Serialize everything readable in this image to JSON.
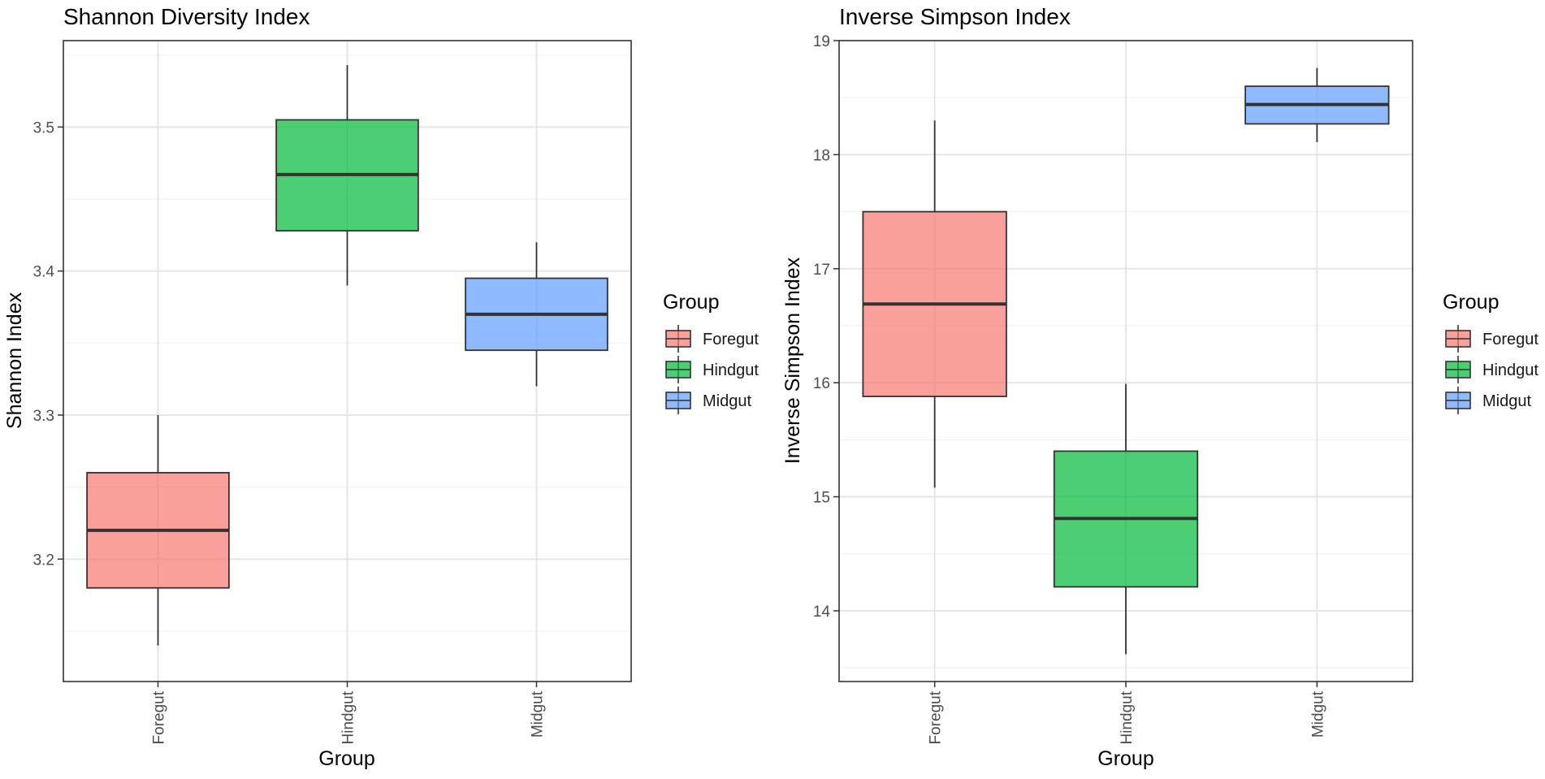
{
  "chart_data": [
    {
      "type": "box",
      "title": "Shannon Diversity Index",
      "xlabel": "Group",
      "ylabel": "Shannon Index",
      "ylim": [
        3.115,
        3.56
      ],
      "yticks": [
        3.2,
        3.3,
        3.4,
        3.5
      ],
      "yticks_minor": [
        3.15,
        3.25,
        3.35,
        3.45,
        3.55
      ],
      "grid": true,
      "categories": [
        "Foregut",
        "Hindgut",
        "Midgut"
      ],
      "boxes": [
        {
          "group": "Foregut",
          "min": 3.14,
          "q1": 3.18,
          "median": 3.22,
          "q3": 3.26,
          "max": 3.3,
          "color": "#F8766D"
        },
        {
          "group": "Hindgut",
          "min": 3.39,
          "q1": 3.428,
          "median": 3.467,
          "q3": 3.505,
          "max": 3.543,
          "color": "#00BA38"
        },
        {
          "group": "Midgut",
          "min": 3.32,
          "q1": 3.345,
          "median": 3.37,
          "q3": 3.395,
          "max": 3.42,
          "color": "#619CFF"
        }
      ],
      "legend": {
        "title": "Group",
        "entries": [
          "Foregut",
          "Hindgut",
          "Midgut"
        ],
        "position": "right"
      }
    },
    {
      "type": "box",
      "title": "Inverse Simpson Index",
      "xlabel": "Group",
      "ylabel": "Inverse Simpson Index",
      "ylim": [
        13.38,
        19.0
      ],
      "yticks": [
        14,
        15,
        16,
        17,
        18,
        19
      ],
      "yticks_minor": [
        13.5,
        14.5,
        15.5,
        16.5,
        17.5,
        18.5
      ],
      "grid": true,
      "categories": [
        "Foregut",
        "Hindgut",
        "Midgut"
      ],
      "boxes": [
        {
          "group": "Foregut",
          "min": 15.08,
          "q1": 15.88,
          "median": 16.69,
          "q3": 17.5,
          "max": 18.3,
          "color": "#F8766D"
        },
        {
          "group": "Hindgut",
          "min": 13.62,
          "q1": 14.21,
          "median": 14.81,
          "q3": 15.4,
          "max": 15.99,
          "color": "#00BA38"
        },
        {
          "group": "Midgut",
          "min": 18.11,
          "q1": 18.27,
          "median": 18.44,
          "q3": 18.6,
          "max": 18.76,
          "color": "#619CFF"
        }
      ],
      "legend": {
        "title": "Group",
        "entries": [
          "Foregut",
          "Hindgut",
          "Midgut"
        ],
        "position": "right"
      }
    }
  ]
}
